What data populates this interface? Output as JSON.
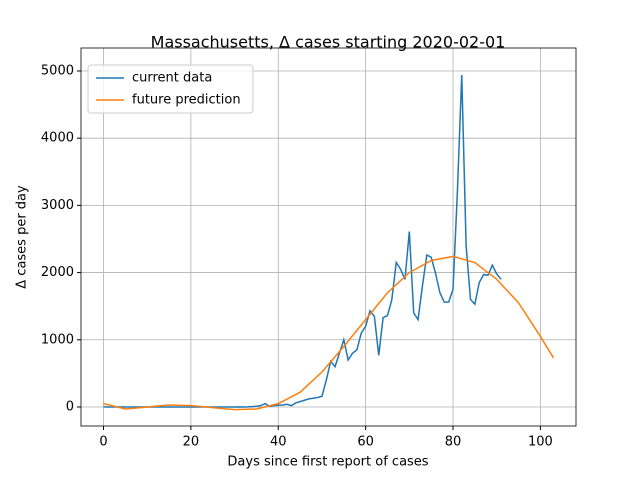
{
  "chart_data": {
    "type": "line",
    "title": "Massachusetts, Δ cases starting 2020-02-01",
    "x_label": "Days since first report of cases",
    "y_label": "Δ cases per day",
    "xlim": [
      -5.15,
      108.15
    ],
    "ylim": [
      -283,
      5342
    ],
    "xticks": [
      0,
      20,
      40,
      60,
      80,
      100
    ],
    "yticks": [
      0,
      1000,
      2000,
      3000,
      4000,
      5000
    ],
    "grid": true,
    "legend": "upper left",
    "series": [
      {
        "name": "current data",
        "color": "#1f77b4",
        "x": [
          0,
          1,
          2,
          3,
          4,
          5,
          6,
          7,
          8,
          9,
          10,
          11,
          12,
          13,
          14,
          15,
          16,
          17,
          18,
          19,
          20,
          21,
          22,
          23,
          24,
          25,
          26,
          27,
          28,
          29,
          30,
          31,
          32,
          33,
          34,
          35,
          36,
          37,
          38,
          39,
          40,
          41,
          42,
          43,
          44,
          45,
          46,
          47,
          48,
          49,
          50,
          51,
          52,
          53,
          54,
          55,
          56,
          57,
          58,
          59,
          60,
          61,
          62,
          63,
          64,
          65,
          66,
          67,
          68,
          69,
          70,
          71,
          72,
          73,
          74,
          75,
          76,
          77,
          78,
          79,
          80,
          81,
          82,
          83,
          84,
          85,
          86,
          87,
          88,
          89,
          90,
          91
        ],
        "values": [
          1,
          0,
          0,
          1,
          0,
          0,
          0,
          0,
          0,
          0,
          1,
          0,
          0,
          0,
          0,
          0,
          0,
          0,
          0,
          0,
          0,
          0,
          0,
          0,
          0,
          0,
          0,
          0,
          0,
          0,
          0,
          1,
          0,
          1,
          6,
          10,
          20,
          50,
          10,
          20,
          25,
          30,
          40,
          20,
          60,
          80,
          100,
          120,
          130,
          140,
          160,
          400,
          680,
          600,
          800,
          1000,
          700,
          800,
          850,
          1100,
          1200,
          1430,
          1350,
          770,
          1330,
          1360,
          1600,
          2150,
          2050,
          1900,
          2610,
          1400,
          1300,
          1800,
          2260,
          2230,
          1990,
          1700,
          1560,
          1560,
          1750,
          3200,
          4940,
          2400,
          1600,
          1530,
          1850,
          1970,
          1960,
          2110,
          1980,
          1900
        ]
      },
      {
        "name": "future prediction",
        "color": "#ff7f0e",
        "x": [
          0,
          5,
          10,
          15,
          20,
          25,
          30,
          35,
          40,
          45,
          50,
          55,
          60,
          65,
          70,
          75,
          80,
          85,
          90,
          95,
          100,
          103
        ],
        "values": [
          50,
          -30,
          0,
          30,
          20,
          -10,
          -40,
          -30,
          50,
          220,
          520,
          900,
          1300,
          1700,
          2000,
          2180,
          2240,
          2150,
          1900,
          1550,
          1050,
          730
        ]
      }
    ]
  }
}
